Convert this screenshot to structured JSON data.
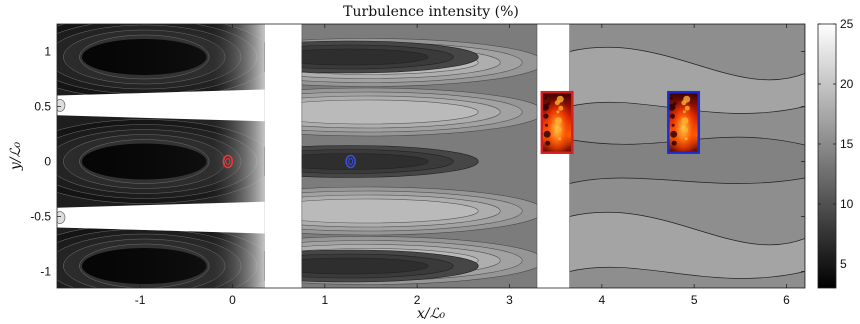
{
  "chart_data": {
    "type": "heatmap",
    "title": "Turbulence intensity (%)",
    "xlabel": "x/ℒ₀",
    "ylabel": "y/ℒ₀",
    "xlim": [
      -1.9,
      6.2
    ],
    "ylim": [
      -1.15,
      1.25
    ],
    "xticks": [
      -1,
      0,
      1,
      2,
      3,
      4,
      5,
      6
    ],
    "yticks": [
      -1,
      -0.5,
      0,
      0.5,
      1
    ],
    "xtick_labels": [
      "-1",
      "0",
      "1",
      "2",
      "3",
      "4",
      "5",
      "6"
    ],
    "ytick_labels": [
      "-1",
      "-0.5",
      "0",
      "0.5",
      "1"
    ],
    "colorbar": {
      "range": [
        3,
        25
      ],
      "ticks": [
        5,
        10,
        15,
        20,
        25
      ],
      "tick_labels": [
        "5",
        "10",
        "15",
        "20",
        "25"
      ],
      "colormap": "gray"
    },
    "grid": false,
    "regions": [
      {
        "name": "field-of-view-1",
        "x": [
          -1.9,
          0.35
        ],
        "y": [
          -1.15,
          1.25
        ],
        "intensity_range": [
          3,
          25
        ]
      },
      {
        "name": "field-of-view-2",
        "x": [
          0.75,
          3.3
        ],
        "y": [
          -1.15,
          1.25
        ],
        "intensity_range": [
          10,
          20
        ]
      },
      {
        "name": "field-of-view-3",
        "x": [
          3.65,
          6.2
        ],
        "y": [
          -1.15,
          1.25
        ],
        "intensity_range": [
          12,
          17
        ]
      }
    ],
    "markers": [
      {
        "name": "red-contour",
        "x": -0.05,
        "y": 0.0,
        "color": "#e8383b"
      },
      {
        "name": "blue-contour",
        "x": 1.28,
        "y": 0.0,
        "color": "#3b4fd8"
      }
    ],
    "insets": [
      {
        "name": "red-inset",
        "x": [
          3.35,
          3.68
        ],
        "y": [
          0.08,
          0.63
        ],
        "border_color": "#d52020"
      },
      {
        "name": "blue-inset",
        "x": [
          4.72,
          5.05
        ],
        "y": [
          0.08,
          0.63
        ],
        "border_color": "#1a2ed0"
      }
    ]
  }
}
